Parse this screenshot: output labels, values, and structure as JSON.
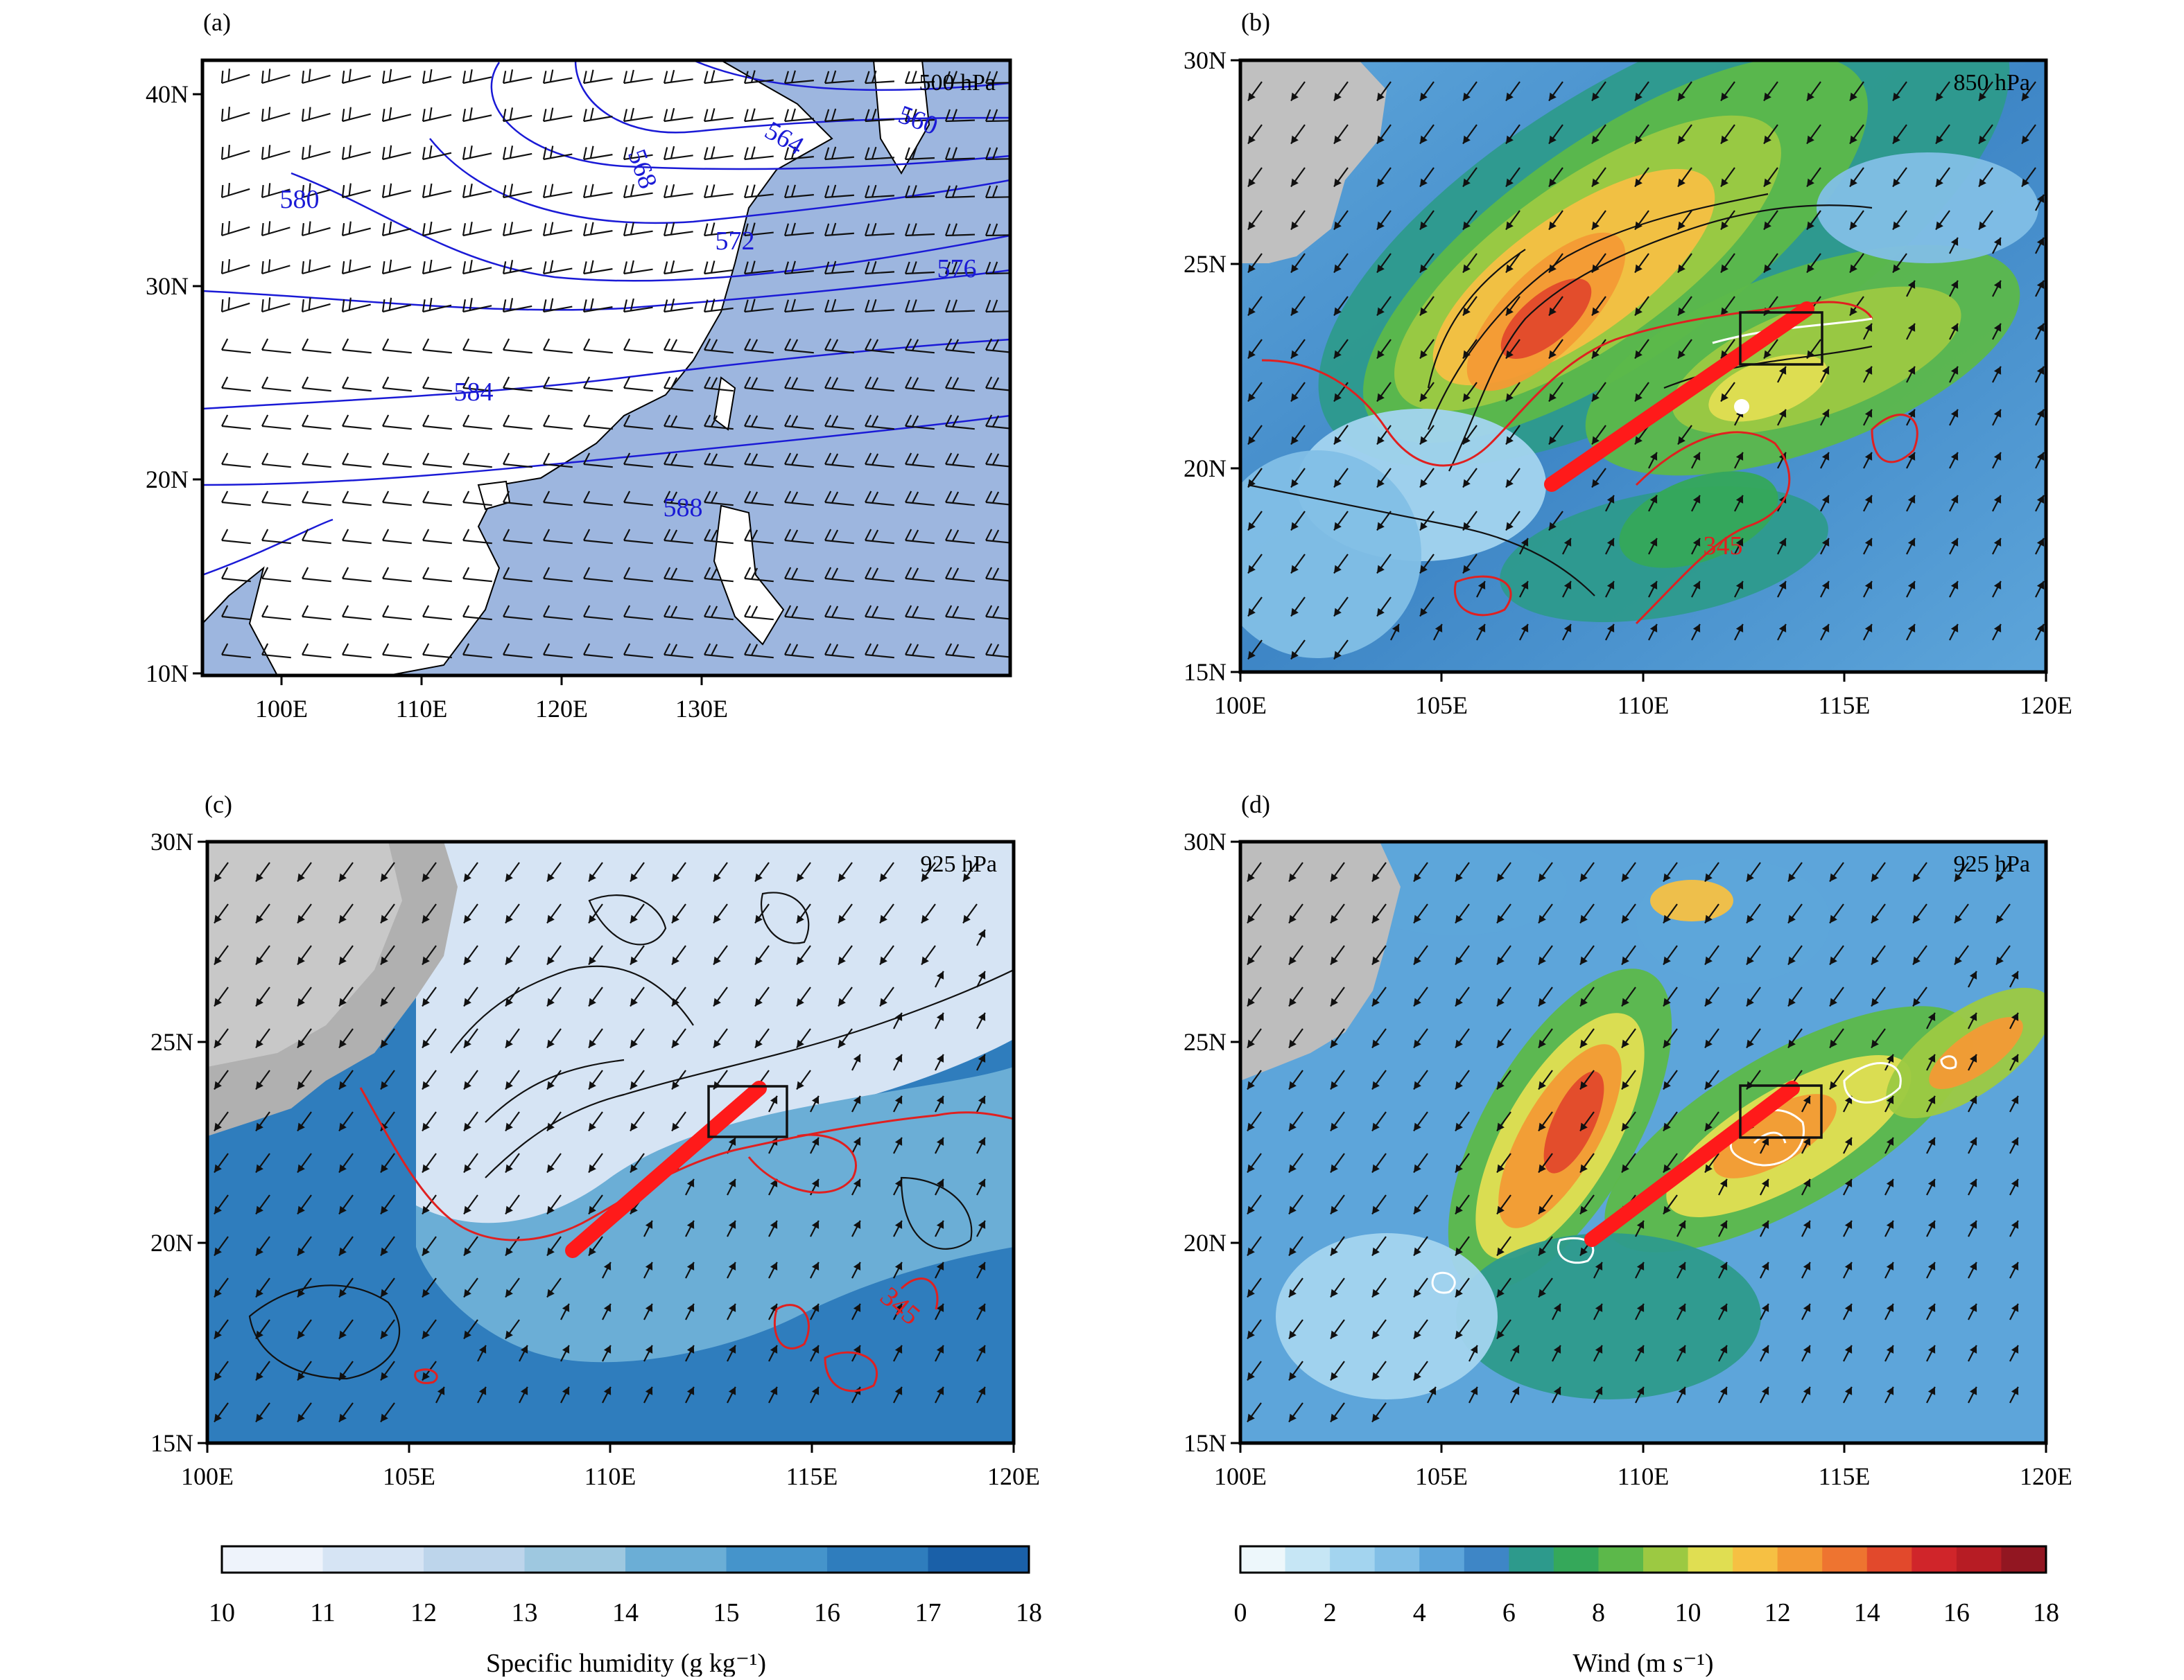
{
  "panels": [
    {
      "id": "a",
      "label": "(a)",
      "level": "500 hPa",
      "x_ticks": [
        "100E",
        "110E",
        "120E",
        "130E"
      ],
      "y_ticks": [
        "10N",
        "20N",
        "30N",
        "40N"
      ],
      "contour_labels": [
        "580",
        "584",
        "588",
        "568",
        "564",
        "560",
        "572",
        "576"
      ],
      "has_trough_line": false,
      "has_box": false
    },
    {
      "id": "b",
      "label": "(b)",
      "level": "850 hPa",
      "x_ticks": [
        "100E",
        "105E",
        "110E",
        "115E",
        "120E"
      ],
      "y_ticks": [
        "15N",
        "20N",
        "25N",
        "30N"
      ],
      "contour_labels": [
        "345"
      ],
      "has_trough_line": true,
      "has_box": true
    },
    {
      "id": "c",
      "label": "(c)",
      "level": "925 hPa",
      "x_ticks": [
        "100E",
        "105E",
        "110E",
        "115E",
        "120E"
      ],
      "y_ticks": [
        "15N",
        "20N",
        "25N",
        "30N"
      ],
      "contour_labels": [
        "345"
      ],
      "has_trough_line": true,
      "has_box": true
    },
    {
      "id": "d",
      "label": "(d)",
      "level": "925 hPa",
      "x_ticks": [
        "100E",
        "105E",
        "110E",
        "115E",
        "120E"
      ],
      "y_ticks": [
        "15N",
        "20N",
        "25N",
        "30N"
      ],
      "contour_labels": [],
      "has_trough_line": true,
      "has_box": true
    }
  ],
  "colorbar_humidity": {
    "title": "Specific humidity (g kg⁻¹)",
    "ticks": [
      "10",
      "11",
      "12",
      "13",
      "14",
      "15",
      "16",
      "17",
      "18"
    ],
    "colors": [
      "#eef3fb",
      "#d6e4f4",
      "#bdd5eb",
      "#9ec8e0",
      "#6baed6",
      "#4594cb",
      "#2f7dbd",
      "#1a60a8"
    ]
  },
  "colorbar_wind": {
    "title": "Wind (m s⁻¹)",
    "ticks": [
      "0",
      "2",
      "4",
      "6",
      "8",
      "10",
      "12",
      "14",
      "16",
      "18"
    ],
    "colors": [
      "#edf7fb",
      "#c6e6f5",
      "#a3d4ef",
      "#82bfe6",
      "#5da5da",
      "#3e86c6",
      "#2d9a8c",
      "#35a85a",
      "#5cb84a",
      "#9cc942",
      "#e0de52",
      "#f6c043",
      "#f39a35",
      "#ee7430",
      "#e2492c",
      "#d0252a",
      "#b71c24",
      "#921621"
    ]
  },
  "colors": {
    "trough_line": "#ff1a1a",
    "theta_e_contour": "#e02020",
    "geopotential_contour": "#1a1ad6",
    "land_gray": "#c0c0c0",
    "ocean_500": "#9db6df"
  }
}
